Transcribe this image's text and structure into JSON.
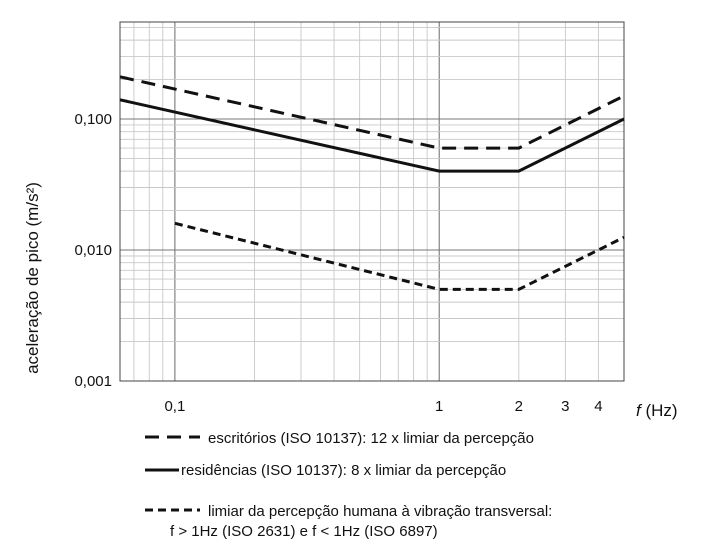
{
  "chart_data": {
    "type": "line",
    "ylabel": "aceleração de pico  (m/s²)",
    "xlabel_f": "f",
    "xlabel_unit": " (Hz)",
    "x_scale": "log",
    "y_scale": "log",
    "xlim": [
      0.062,
      5.0
    ],
    "ylim": [
      0.001,
      0.55
    ],
    "grid": true,
    "x_tick_labels": [
      {
        "value": 0.1,
        "label": "0,1"
      },
      {
        "value": 1,
        "label": "1"
      },
      {
        "value": 2,
        "label": "2"
      },
      {
        "value": 3,
        "label": "3"
      },
      {
        "value": 4,
        "label": "4"
      }
    ],
    "y_tick_labels": [
      {
        "value": 0.001,
        "label": "0,001"
      },
      {
        "value": 0.01,
        "label": "0,010"
      },
      {
        "value": 0.1,
        "label": "0,100"
      }
    ],
    "series": [
      {
        "name": "escritórios (ISO 10137): 12 x limiar da percepção",
        "style": "dashed",
        "x": [
          0.062,
          1,
          2,
          5.0
        ],
        "y": [
          0.21,
          0.06,
          0.06,
          0.15
        ]
      },
      {
        "name": "residências (ISO 10137): 8 x limiar da percepção",
        "style": "solid",
        "x": [
          0.062,
          1,
          2,
          5.0
        ],
        "y": [
          0.14,
          0.04,
          0.04,
          0.1
        ]
      },
      {
        "name": "limiar da percepção humana à vibração transversal:",
        "name_line2": "f > 1Hz (ISO 2631) e f < 1Hz (ISO 6897)",
        "style": "short-dashed",
        "x": [
          0.1,
          1,
          2,
          5.0
        ],
        "y": [
          0.016,
          0.005,
          0.005,
          0.0125
        ]
      }
    ],
    "legend_position": "bottom"
  }
}
